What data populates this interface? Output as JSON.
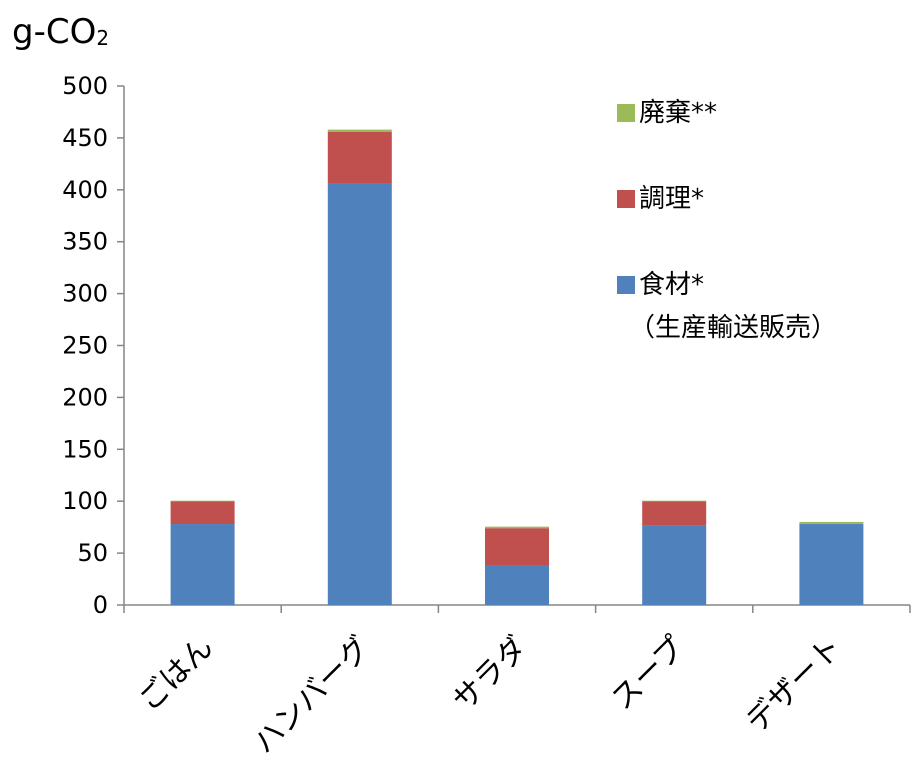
{
  "chart_data": {
    "type": "bar",
    "stacked": true,
    "unit_label": {
      "main": "g-CO",
      "sub": "2"
    },
    "categories": [
      "ごはん",
      "ハンバーグ",
      "サラダ",
      "スープ",
      "デザート"
    ],
    "series": [
      {
        "name": "食材*",
        "name_line2": "（生産輸送販売）",
        "color": "#4F81BD",
        "values": [
          78,
          406,
          38,
          77,
          78
        ]
      },
      {
        "name": "調理*",
        "color": "#C0504D",
        "values": [
          22,
          50,
          36,
          23,
          0
        ]
      },
      {
        "name": "廃棄**",
        "color": "#9BBB59",
        "values": [
          0.5,
          2,
          1.5,
          0.5,
          2
        ]
      }
    ],
    "ylim": [
      0,
      500
    ],
    "yticks": [
      0,
      50,
      100,
      150,
      200,
      250,
      300,
      350,
      400,
      450,
      500
    ],
    "grid": false,
    "legend_position": "top-right"
  }
}
